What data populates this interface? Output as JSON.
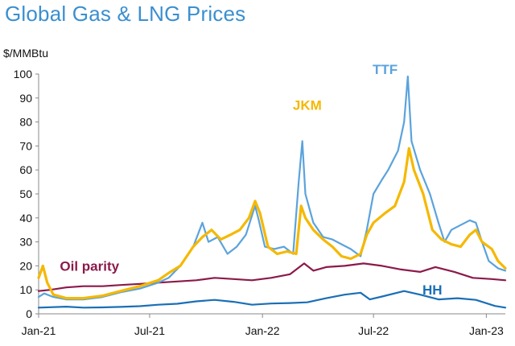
{
  "page": {
    "title": "Global Gas & LNG Prices",
    "unit": "$/MMBtu"
  },
  "chart_data": {
    "type": "line",
    "title": "Global Gas & LNG Prices",
    "ylabel": "$/MMBtu",
    "xlabel": "",
    "ylim": [
      0,
      100
    ],
    "xlim": [
      "2021-01-01",
      "2023-02-01"
    ],
    "yticks": [
      0,
      10,
      20,
      30,
      40,
      50,
      60,
      70,
      80,
      90,
      100
    ],
    "xticks": [
      {
        "date": "2021-01-01",
        "label": "Jan-21"
      },
      {
        "date": "2021-07-01",
        "label": "Jul-21"
      },
      {
        "date": "2022-01-01",
        "label": "Jan-22"
      },
      {
        "date": "2022-07-01",
        "label": "Jul-22"
      },
      {
        "date": "2023-01-01",
        "label": "Jan-23"
      }
    ],
    "grid": false,
    "legend": "inline labels",
    "series": [
      {
        "name": "Oil parity",
        "color": "#8b1a4a",
        "label_date": "2021-03-25",
        "label_value": 18,
        "points": [
          [
            "2021-01-01",
            9.5
          ],
          [
            "2021-01-20",
            10
          ],
          [
            "2021-02-15",
            11
          ],
          [
            "2021-03-15",
            11.5
          ],
          [
            "2021-04-15",
            11.5
          ],
          [
            "2021-05-15",
            12
          ],
          [
            "2021-06-15",
            12.5
          ],
          [
            "2021-07-15",
            13
          ],
          [
            "2021-08-15",
            13.5
          ],
          [
            "2021-09-15",
            14
          ],
          [
            "2021-10-15",
            15
          ],
          [
            "2021-11-15",
            14.5
          ],
          [
            "2021-12-15",
            14
          ],
          [
            "2022-01-15",
            15
          ],
          [
            "2022-02-15",
            16.5
          ],
          [
            "2022-03-10",
            21
          ],
          [
            "2022-03-25",
            18
          ],
          [
            "2022-04-15",
            19.5
          ],
          [
            "2022-05-15",
            20
          ],
          [
            "2022-06-15",
            21
          ],
          [
            "2022-07-15",
            20
          ],
          [
            "2022-08-15",
            18.5
          ],
          [
            "2022-09-15",
            17.5
          ],
          [
            "2022-10-10",
            19.5
          ],
          [
            "2022-11-10",
            17.5
          ],
          [
            "2022-12-10",
            15
          ],
          [
            "2023-01-10",
            14.5
          ],
          [
            "2023-02-01",
            14
          ]
        ]
      },
      {
        "name": "HH",
        "color": "#1a6fb5",
        "label_date": "2022-10-05",
        "label_value": 8,
        "points": [
          [
            "2021-01-01",
            2.6
          ],
          [
            "2021-02-15",
            3
          ],
          [
            "2021-03-15",
            2.6
          ],
          [
            "2021-04-15",
            2.7
          ],
          [
            "2021-05-15",
            2.9
          ],
          [
            "2021-06-15",
            3.2
          ],
          [
            "2021-07-15",
            3.8
          ],
          [
            "2021-08-15",
            4.2
          ],
          [
            "2021-09-15",
            5.2
          ],
          [
            "2021-10-15",
            5.8
          ],
          [
            "2021-11-15",
            5
          ],
          [
            "2021-12-15",
            3.8
          ],
          [
            "2022-01-15",
            4.3
          ],
          [
            "2022-02-15",
            4.5
          ],
          [
            "2022-03-15",
            4.8
          ],
          [
            "2022-04-15",
            6.5
          ],
          [
            "2022-05-15",
            8
          ],
          [
            "2022-06-10",
            8.8
          ],
          [
            "2022-06-25",
            6
          ],
          [
            "2022-07-15",
            7.2
          ],
          [
            "2022-08-20",
            9.5
          ],
          [
            "2022-09-15",
            8
          ],
          [
            "2022-10-15",
            6
          ],
          [
            "2022-11-15",
            6.5
          ],
          [
            "2022-12-15",
            5.8
          ],
          [
            "2023-01-15",
            3.3
          ],
          [
            "2023-02-01",
            2.6
          ]
        ]
      },
      {
        "name": "TTF",
        "color": "#5ba3dc",
        "label_date": "2022-07-20",
        "label_value": 100,
        "points": [
          [
            "2021-01-01",
            7
          ],
          [
            "2021-01-10",
            8.5
          ],
          [
            "2021-01-25",
            7
          ],
          [
            "2021-02-15",
            6
          ],
          [
            "2021-03-15",
            6
          ],
          [
            "2021-04-15",
            7
          ],
          [
            "2021-05-15",
            9
          ],
          [
            "2021-06-15",
            10.5
          ],
          [
            "2021-07-15",
            13
          ],
          [
            "2021-08-01",
            15
          ],
          [
            "2021-08-20",
            20
          ],
          [
            "2021-09-10",
            28
          ],
          [
            "2021-09-25",
            38
          ],
          [
            "2021-10-05",
            30
          ],
          [
            "2021-10-20",
            32
          ],
          [
            "2021-11-05",
            25
          ],
          [
            "2021-11-20",
            28
          ],
          [
            "2021-12-05",
            33
          ],
          [
            "2021-12-20",
            45
          ],
          [
            "2021-12-25",
            40
          ],
          [
            "2022-01-05",
            28
          ],
          [
            "2022-01-20",
            27
          ],
          [
            "2022-02-05",
            28
          ],
          [
            "2022-02-20",
            25
          ],
          [
            "2022-03-01",
            55
          ],
          [
            "2022-03-07",
            72
          ],
          [
            "2022-03-12",
            50
          ],
          [
            "2022-03-25",
            38
          ],
          [
            "2022-04-10",
            32
          ],
          [
            "2022-04-25",
            31
          ],
          [
            "2022-05-10",
            29
          ],
          [
            "2022-05-25",
            27
          ],
          [
            "2022-06-10",
            24
          ],
          [
            "2022-06-20",
            35
          ],
          [
            "2022-07-01",
            50
          ],
          [
            "2022-07-15",
            56
          ],
          [
            "2022-07-25",
            60
          ],
          [
            "2022-08-10",
            68
          ],
          [
            "2022-08-20",
            80
          ],
          [
            "2022-08-26",
            99
          ],
          [
            "2022-09-01",
            72
          ],
          [
            "2022-09-15",
            60
          ],
          [
            "2022-10-01",
            50
          ],
          [
            "2022-10-15",
            38
          ],
          [
            "2022-10-25",
            30
          ],
          [
            "2022-11-05",
            35
          ],
          [
            "2022-11-20",
            37
          ],
          [
            "2022-12-05",
            39
          ],
          [
            "2022-12-15",
            38
          ],
          [
            "2022-12-25",
            30
          ],
          [
            "2023-01-05",
            22
          ],
          [
            "2023-01-20",
            19
          ],
          [
            "2023-02-01",
            18
          ]
        ]
      },
      {
        "name": "JKM",
        "color": "#f5b800",
        "label_date": "2022-03-15",
        "label_value": 85,
        "points": [
          [
            "2021-01-01",
            15
          ],
          [
            "2021-01-08",
            20
          ],
          [
            "2021-01-15",
            13
          ],
          [
            "2021-01-25",
            8
          ],
          [
            "2021-02-15",
            6.5
          ],
          [
            "2021-03-15",
            6.5
          ],
          [
            "2021-04-15",
            7.5
          ],
          [
            "2021-05-15",
            9.5
          ],
          [
            "2021-06-15",
            11.5
          ],
          [
            "2021-07-15",
            14
          ],
          [
            "2021-08-01",
            17
          ],
          [
            "2021-08-20",
            20
          ],
          [
            "2021-09-10",
            28
          ],
          [
            "2021-09-25",
            32
          ],
          [
            "2021-10-10",
            35
          ],
          [
            "2021-10-25",
            31
          ],
          [
            "2021-11-10",
            33
          ],
          [
            "2021-11-25",
            35
          ],
          [
            "2021-12-10",
            40
          ],
          [
            "2021-12-20",
            47
          ],
          [
            "2021-12-28",
            42
          ],
          [
            "2022-01-10",
            28
          ],
          [
            "2022-01-25",
            25
          ],
          [
            "2022-02-10",
            26
          ],
          [
            "2022-02-25",
            25
          ],
          [
            "2022-03-05",
            45
          ],
          [
            "2022-03-12",
            40
          ],
          [
            "2022-03-25",
            35
          ],
          [
            "2022-04-10",
            31
          ],
          [
            "2022-04-25",
            28
          ],
          [
            "2022-05-10",
            24
          ],
          [
            "2022-05-25",
            23
          ],
          [
            "2022-06-10",
            25
          ],
          [
            "2022-06-20",
            33
          ],
          [
            "2022-07-01",
            38
          ],
          [
            "2022-07-20",
            42
          ],
          [
            "2022-08-05",
            45
          ],
          [
            "2022-08-20",
            55
          ],
          [
            "2022-08-28",
            69
          ],
          [
            "2022-09-05",
            60
          ],
          [
            "2022-09-20",
            50
          ],
          [
            "2022-10-05",
            35
          ],
          [
            "2022-10-20",
            31
          ],
          [
            "2022-11-05",
            29
          ],
          [
            "2022-11-20",
            28
          ],
          [
            "2022-12-05",
            33
          ],
          [
            "2022-12-15",
            35
          ],
          [
            "2022-12-25",
            30
          ],
          [
            "2023-01-10",
            27
          ],
          [
            "2023-01-20",
            22
          ],
          [
            "2023-02-01",
            19
          ]
        ]
      }
    ]
  }
}
